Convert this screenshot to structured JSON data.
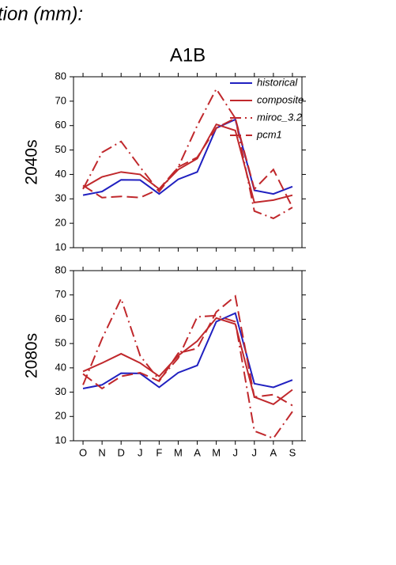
{
  "header": {
    "text": "tion (mm):"
  },
  "chart_data": [
    {
      "type": "line",
      "title": "A1B",
      "ylabel": "2040s",
      "categories": [
        null,
        null,
        null,
        null,
        null,
        null,
        null,
        null,
        null,
        null,
        null,
        null
      ],
      "ylim": [
        10,
        80
      ],
      "yticks": [
        10,
        20,
        30,
        40,
        50,
        60,
        70,
        80
      ],
      "legend": "upper right",
      "series": [
        {
          "name": "historical",
          "color": "#2020c0",
          "style": "solid",
          "values": [
            31.5,
            33,
            37.8,
            37.7,
            32,
            38,
            41,
            59,
            62.5,
            33.5,
            32,
            35
          ]
        },
        {
          "name": "composite",
          "color": "#c0282c",
          "style": "solid",
          "values": [
            34.5,
            39,
            41,
            40,
            34,
            42,
            46.5,
            60.5,
            58,
            28.5,
            29.5,
            31.5
          ]
        },
        {
          "name": "miroc_3.2",
          "color": "#c0282c",
          "style": "dashdot",
          "values": [
            34,
            49,
            53.5,
            43,
            33,
            43,
            60,
            75,
            63,
            25,
            22,
            26.5
          ]
        },
        {
          "name": "pcm1",
          "color": "#c0282c",
          "style": "dashed",
          "values": [
            35.5,
            30.5,
            31,
            30.5,
            34,
            43,
            47,
            59,
            63,
            34,
            42,
            26.5
          ]
        }
      ]
    },
    {
      "type": "line",
      "ylabel": "2080s",
      "categories": [
        "O",
        "N",
        "D",
        "J",
        "F",
        "M",
        "A",
        "M",
        "J",
        "J",
        "A",
        "S"
      ],
      "ylim": [
        10,
        80
      ],
      "yticks": [
        10,
        20,
        30,
        40,
        50,
        60,
        70,
        80
      ],
      "series": [
        {
          "color": "#2020c0",
          "style": "solid",
          "values": [
            31.5,
            33,
            37.8,
            37.7,
            32,
            38,
            41,
            59,
            62.5,
            33.5,
            32,
            35
          ]
        },
        {
          "color": "#c0282c",
          "style": "solid",
          "values": [
            38.5,
            42,
            45.8,
            42,
            36.5,
            45,
            51,
            60.5,
            58,
            28,
            25,
            31
          ]
        },
        {
          "color": "#c0282c",
          "style": "dashdot",
          "values": [
            33,
            52,
            68.5,
            45,
            35,
            44,
            61,
            61.5,
            59,
            14,
            11,
            22
          ]
        },
        {
          "color": "#c0282c",
          "style": "dashed",
          "values": [
            37.5,
            31.5,
            36.5,
            38,
            34.5,
            46,
            48,
            63,
            69.5,
            28,
            29,
            24.5
          ]
        }
      ]
    }
  ]
}
